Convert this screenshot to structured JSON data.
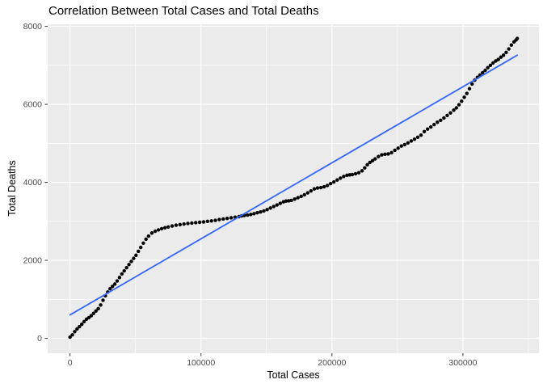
{
  "chart_data": {
    "type": "scatter",
    "title": "Correlation Between Total Cases and Total Deaths",
    "xlabel": "Total Cases",
    "ylabel": "Total Deaths",
    "x_ticks": [
      0,
      100000,
      200000,
      300000
    ],
    "x_minor_ticks": [
      50000,
      150000,
      250000,
      350000
    ],
    "y_ticks": [
      0,
      2000,
      4000,
      6000,
      8000
    ],
    "y_minor_ticks": [
      1000,
      3000,
      5000,
      7000
    ],
    "xlim": [
      -17050,
      358050
    ],
    "ylim": [
      -383,
      8053
    ],
    "grid": "white major and minor gridlines on gray panel",
    "legend_position": "none",
    "colors": {
      "panel_bg": "#EBEBEB",
      "grid": "#FFFFFF",
      "point": "#000000",
      "smooth_line": "#3366FF",
      "tick_label": "#4D4D4D",
      "tick_mark": "#333333",
      "title": "#000000"
    },
    "series": [
      {
        "name": "observations",
        "type": "points",
        "color": "#000000",
        "points": [
          [
            0,
            30
          ],
          [
            1800,
            90
          ],
          [
            3600,
            170
          ],
          [
            5400,
            240
          ],
          [
            7200,
            300
          ],
          [
            9000,
            360
          ],
          [
            10800,
            430
          ],
          [
            12600,
            490
          ],
          [
            14400,
            530
          ],
          [
            16200,
            580
          ],
          [
            18000,
            640
          ],
          [
            19800,
            700
          ],
          [
            21600,
            760
          ],
          [
            23400,
            855
          ],
          [
            25200,
            975
          ],
          [
            27000,
            1090
          ],
          [
            28800,
            1185
          ],
          [
            30600,
            1270
          ],
          [
            32400,
            1330
          ],
          [
            34200,
            1390
          ],
          [
            36000,
            1470
          ],
          [
            37800,
            1560
          ],
          [
            39600,
            1650
          ],
          [
            41400,
            1730
          ],
          [
            43200,
            1810
          ],
          [
            45000,
            1890
          ],
          [
            46800,
            1970
          ],
          [
            48600,
            2050
          ],
          [
            50400,
            2130
          ],
          [
            52200,
            2230
          ],
          [
            54000,
            2330
          ],
          [
            56000,
            2440
          ],
          [
            58000,
            2540
          ],
          [
            60000,
            2620
          ],
          [
            62500,
            2700
          ],
          [
            65000,
            2745
          ],
          [
            67500,
            2780
          ],
          [
            70000,
            2810
          ],
          [
            72500,
            2835
          ],
          [
            75000,
            2855
          ],
          [
            78000,
            2880
          ],
          [
            81000,
            2900
          ],
          [
            84000,
            2915
          ],
          [
            87000,
            2930
          ],
          [
            90000,
            2945
          ],
          [
            93000,
            2955
          ],
          [
            96000,
            2965
          ],
          [
            99000,
            2975
          ],
          [
            102000,
            2985
          ],
          [
            105000,
            3000
          ],
          [
            108000,
            3010
          ],
          [
            111000,
            3025
          ],
          [
            114000,
            3045
          ],
          [
            117000,
            3060
          ],
          [
            120000,
            3075
          ],
          [
            123000,
            3090
          ],
          [
            126000,
            3105
          ],
          [
            129000,
            3120
          ],
          [
            131000,
            3140
          ],
          [
            133000,
            3150
          ],
          [
            135500,
            3160
          ],
          [
            138000,
            3175
          ],
          [
            140500,
            3195
          ],
          [
            143000,
            3220
          ],
          [
            145500,
            3240
          ],
          [
            148000,
            3265
          ],
          [
            150500,
            3300
          ],
          [
            153000,
            3340
          ],
          [
            155500,
            3380
          ],
          [
            158000,
            3420
          ],
          [
            160500,
            3460
          ],
          [
            163000,
            3500
          ],
          [
            165000,
            3520
          ],
          [
            167000,
            3525
          ],
          [
            169000,
            3535
          ],
          [
            171500,
            3570
          ],
          [
            174000,
            3605
          ],
          [
            176500,
            3640
          ],
          [
            179000,
            3680
          ],
          [
            181500,
            3730
          ],
          [
            184000,
            3780
          ],
          [
            186500,
            3830
          ],
          [
            189000,
            3855
          ],
          [
            191500,
            3865
          ],
          [
            194000,
            3885
          ],
          [
            196500,
            3920
          ],
          [
            199000,
            3965
          ],
          [
            201500,
            4010
          ],
          [
            204000,
            4060
          ],
          [
            206500,
            4105
          ],
          [
            209000,
            4150
          ],
          [
            211500,
            4180
          ],
          [
            213500,
            4190
          ],
          [
            215500,
            4200
          ],
          [
            218000,
            4220
          ],
          [
            220500,
            4245
          ],
          [
            223000,
            4295
          ],
          [
            225000,
            4370
          ],
          [
            227000,
            4450
          ],
          [
            229000,
            4510
          ],
          [
            231000,
            4555
          ],
          [
            233000,
            4600
          ],
          [
            235500,
            4660
          ],
          [
            238000,
            4705
          ],
          [
            240500,
            4720
          ],
          [
            243000,
            4728
          ],
          [
            245500,
            4760
          ],
          [
            248000,
            4820
          ],
          [
            250500,
            4875
          ],
          [
            253000,
            4930
          ],
          [
            255500,
            4965
          ],
          [
            258000,
            5010
          ],
          [
            260500,
            5060
          ],
          [
            263000,
            5105
          ],
          [
            265500,
            5155
          ],
          [
            268000,
            5210
          ],
          [
            270500,
            5300
          ],
          [
            273000,
            5365
          ],
          [
            275500,
            5420
          ],
          [
            278000,
            5480
          ],
          [
            280500,
            5540
          ],
          [
            283000,
            5590
          ],
          [
            285500,
            5650
          ],
          [
            288000,
            5715
          ],
          [
            290500,
            5780
          ],
          [
            293000,
            5850
          ],
          [
            295000,
            5910
          ],
          [
            297000,
            5990
          ],
          [
            299000,
            6080
          ],
          [
            301000,
            6180
          ],
          [
            303000,
            6280
          ],
          [
            305000,
            6400
          ],
          [
            307000,
            6520
          ],
          [
            309000,
            6620
          ],
          [
            311000,
            6690
          ],
          [
            313000,
            6750
          ],
          [
            315000,
            6810
          ],
          [
            317000,
            6870
          ],
          [
            319000,
            6940
          ],
          [
            321000,
            7000
          ],
          [
            323000,
            7060
          ],
          [
            325000,
            7110
          ],
          [
            327000,
            7150
          ],
          [
            329000,
            7210
          ],
          [
            331000,
            7260
          ],
          [
            333000,
            7330
          ],
          [
            335000,
            7420
          ],
          [
            337000,
            7520
          ],
          [
            339000,
            7600
          ],
          [
            340500,
            7650
          ],
          [
            341500,
            7690
          ]
        ]
      },
      {
        "name": "linear-fit",
        "type": "line",
        "color": "#3366FF",
        "points": [
          [
            0,
            600
          ],
          [
            341500,
            7260
          ]
        ]
      }
    ]
  }
}
